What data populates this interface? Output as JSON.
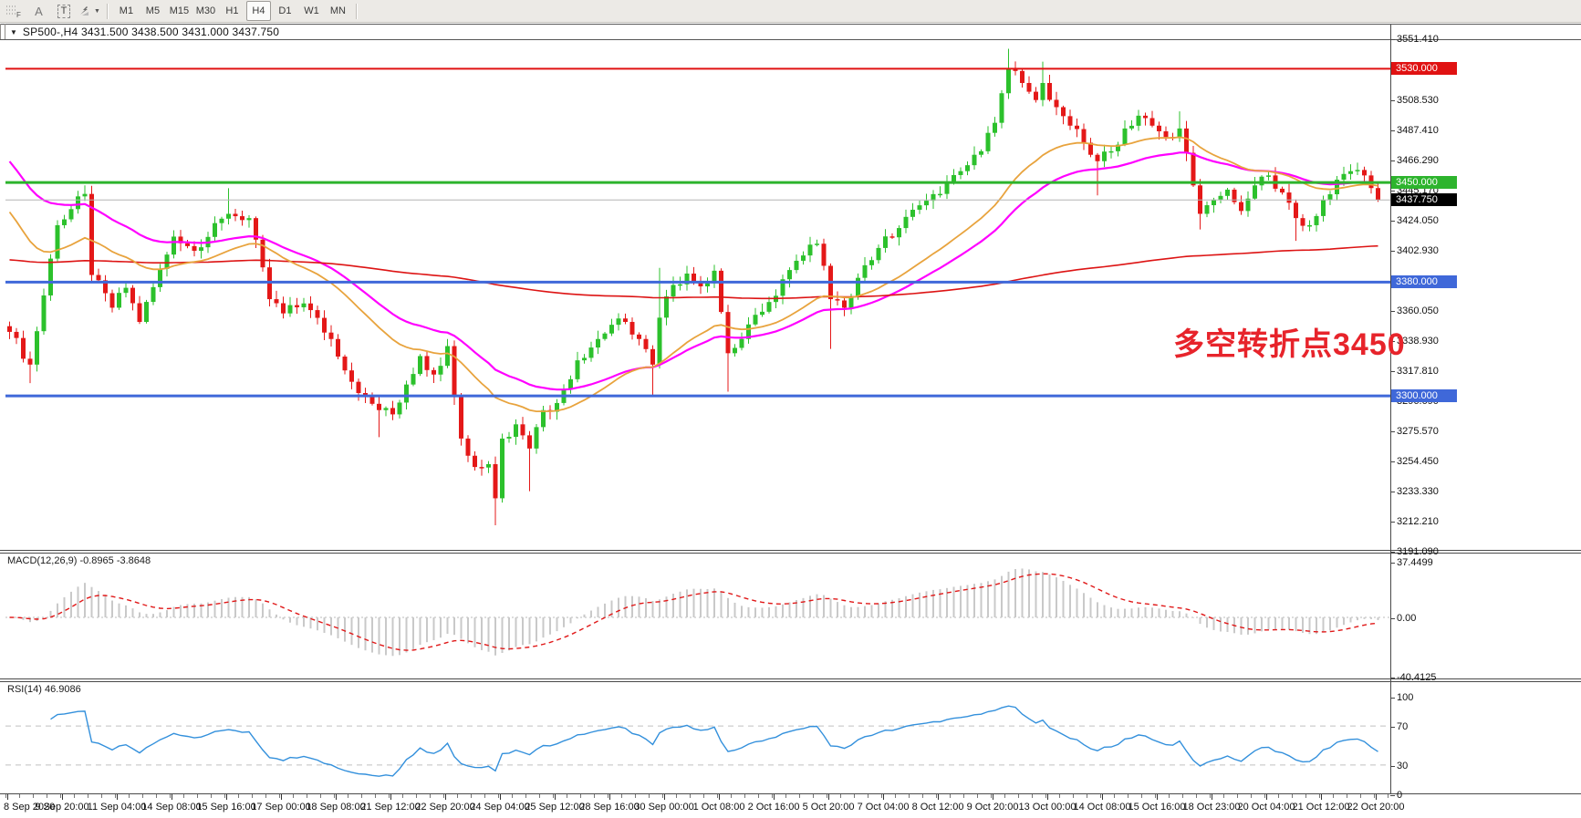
{
  "toolbar": {
    "f_label": "F",
    "a_label": "A",
    "t_label": "T",
    "timeframes": [
      "M1",
      "M5",
      "M15",
      "M30",
      "H1",
      "H4",
      "D1",
      "W1",
      "MN"
    ],
    "active_timeframe": "H4"
  },
  "chart_window": {
    "title": "SP500-,H4  3431.500 3438.500 3431.000 3437.750",
    "symbol": "SP500-",
    "timeframe": "H4"
  },
  "annotation": {
    "text": "多空转折点3450",
    "color": "#e7242b"
  },
  "price_axis": {
    "ticks": [
      "3551.410",
      "3508.530",
      "3487.410",
      "3466.290",
      "3445.170",
      "3424.050",
      "3402.930",
      "3360.050",
      "3338.930",
      "3317.810",
      "3296.690",
      "3275.570",
      "3254.450",
      "3233.330",
      "3212.210",
      "3191.090"
    ],
    "levels": [
      {
        "label": "3530.000",
        "price": 3530.0,
        "color": "#e01212",
        "line_width": 2
      },
      {
        "label": "3450.000",
        "price": 3450.0,
        "color": "#2db42d",
        "line_width": 3
      },
      {
        "label": "3380.000",
        "price": 3380.0,
        "color": "#3f68d9",
        "line_width": 3
      },
      {
        "label": "3300.000",
        "price": 3300.0,
        "color": "#3f68d9",
        "line_width": 3
      }
    ],
    "current": {
      "label": "3437.750",
      "price": 3437.75,
      "line_color": "#b4b4b4",
      "bg": "#000000"
    }
  },
  "macd_panel": {
    "label": "MACD(12,26,9) -0.8965 -3.8648",
    "params": "12,26,9",
    "values": [
      "-0.8965",
      "-3.8648"
    ],
    "axis": [
      {
        "label": "37.4499",
        "value": 37.4499
      },
      {
        "label": "0.00",
        "value": 0
      },
      {
        "label": "-40.4125",
        "value": -40.4125
      }
    ],
    "histogram_color": "#c9c9c9",
    "signal_color": "#e01818"
  },
  "rsi_panel": {
    "label": "RSI(14) 46.9086",
    "period": "14",
    "value": "46.9086",
    "axis": [
      {
        "label": "100",
        "value": 100
      },
      {
        "label": "70",
        "value": 70
      },
      {
        "label": "30",
        "value": 30
      },
      {
        "label": "0",
        "value": 0
      }
    ],
    "guides": [
      70,
      30
    ],
    "line_color": "#3390dc"
  },
  "date_axis": [
    "8 Sep 2020",
    "9 Sep 20:00",
    "11 Sep 04:00",
    "14 Sep 08:00",
    "15 Sep 16:00",
    "17 Sep 00:00",
    "18 Sep 08:00",
    "21 Sep 12:00",
    "22 Sep 20:00",
    "24 Sep 04:00",
    "25 Sep 12:00",
    "28 Sep 16:00",
    "30 Sep 00:00",
    "1 Oct 08:00",
    "2 Oct 16:00",
    "5 Oct 20:00",
    "7 Oct 04:00",
    "8 Oct 12:00",
    "9 Oct 20:00",
    "13 Oct 00:00",
    "14 Oct 08:00",
    "15 Oct 16:00",
    "18 Oct 23:00",
    "20 Oct 04:00",
    "21 Oct 12:00",
    "22 Oct 20:00"
  ],
  "chart_data": {
    "type": "candlestick",
    "symbol": "SP500-",
    "timeframe": "H4",
    "title_ohlc": {
      "open": 3431.5,
      "high": 3438.5,
      "low": 3431.0,
      "close": 3437.75
    },
    "price_range": [
      3191.09,
      3551.41
    ],
    "horizontal_levels": [
      3530,
      3450,
      3380,
      3300
    ],
    "bid_price": 3437.75,
    "colors": {
      "bull": "#2cc12c",
      "bear": "#e41818"
    },
    "waypoints": [
      [
        0,
        3345
      ],
      [
        3,
        3322
      ],
      [
        7,
        3420
      ],
      [
        11,
        3442
      ],
      [
        12,
        3385
      ],
      [
        15,
        3362
      ],
      [
        17,
        3376
      ],
      [
        19,
        3352
      ],
      [
        24,
        3412
      ],
      [
        27,
        3402
      ],
      [
        32,
        3428
      ],
      [
        35,
        3425
      ],
      [
        38,
        3368
      ],
      [
        40,
        3358
      ],
      [
        43,
        3365
      ],
      [
        47,
        3340
      ],
      [
        51,
        3302
      ],
      [
        54,
        3290
      ],
      [
        56,
        3287
      ],
      [
        58,
        3308
      ],
      [
        60,
        3328
      ],
      [
        62,
        3315
      ],
      [
        64,
        3335
      ],
      [
        66,
        3270
      ],
      [
        68,
        3250
      ],
      [
        70,
        3252
      ],
      [
        71,
        3228
      ],
      [
        72,
        3270
      ],
      [
        74,
        3280
      ],
      [
        76,
        3263
      ],
      [
        78,
        3290
      ],
      [
        80,
        3295
      ],
      [
        83,
        3325
      ],
      [
        86,
        3340
      ],
      [
        88,
        3350
      ],
      [
        90,
        3352
      ],
      [
        92,
        3340
      ],
      [
        94,
        3322
      ],
      [
        95,
        3355
      ],
      [
        97,
        3378
      ],
      [
        99,
        3386
      ],
      [
        101,
        3377
      ],
      [
        103,
        3388
      ],
      [
        105,
        3330
      ],
      [
        107,
        3340
      ],
      [
        109,
        3357
      ],
      [
        111,
        3366
      ],
      [
        113,
        3382
      ],
      [
        115,
        3395
      ],
      [
        118,
        3407
      ],
      [
        120,
        3368
      ],
      [
        122,
        3362
      ],
      [
        124,
        3383
      ],
      [
        127,
        3404
      ],
      [
        130,
        3418
      ],
      [
        133,
        3434
      ],
      [
        136,
        3442
      ],
      [
        139,
        3458
      ],
      [
        142,
        3472
      ],
      [
        144,
        3492
      ],
      [
        146,
        3530
      ],
      [
        148,
        3520
      ],
      [
        150,
        3508
      ],
      [
        151,
        3520
      ],
      [
        153,
        3503
      ],
      [
        155,
        3490
      ],
      [
        157,
        3478
      ],
      [
        159,
        3465
      ],
      [
        161,
        3472
      ],
      [
        163,
        3488
      ],
      [
        165,
        3497
      ],
      [
        167,
        3490
      ],
      [
        169,
        3482
      ],
      [
        171,
        3488
      ],
      [
        173,
        3448
      ],
      [
        174,
        3428
      ],
      [
        176,
        3438
      ],
      [
        178,
        3445
      ],
      [
        180,
        3430
      ],
      [
        182,
        3448
      ],
      [
        184,
        3455
      ],
      [
        186,
        3443
      ],
      [
        188,
        3425
      ],
      [
        190,
        3420
      ],
      [
        192,
        3438
      ],
      [
        194,
        3452
      ],
      [
        196,
        3458
      ],
      [
        198,
        3455
      ],
      [
        200,
        3437.75
      ]
    ],
    "wick_lows": [
      [
        3,
        3309
      ],
      [
        54,
        3271
      ],
      [
        71,
        3209
      ],
      [
        76,
        3233
      ],
      [
        94,
        3300
      ],
      [
        105,
        3303
      ],
      [
        120,
        3333
      ],
      [
        159,
        3441
      ],
      [
        174,
        3417
      ],
      [
        188,
        3409
      ]
    ],
    "wick_highs": [
      [
        11,
        3448
      ],
      [
        32,
        3446
      ],
      [
        95,
        3390
      ],
      [
        146,
        3544
      ],
      [
        151,
        3535
      ],
      [
        171,
        3500
      ]
    ],
    "moving_averages": [
      {
        "name": "ma-magenta",
        "color": "#ff00ff",
        "period": 40,
        "seed": 3471,
        "width": 2.2
      },
      {
        "name": "ma-red",
        "color": "#dd1414",
        "period": 300,
        "seed": 3396,
        "width": 1.6
      },
      {
        "name": "ma-orange",
        "color": "#e8a33d",
        "period": 26,
        "seed": 3436,
        "width": 1.8
      }
    ]
  }
}
